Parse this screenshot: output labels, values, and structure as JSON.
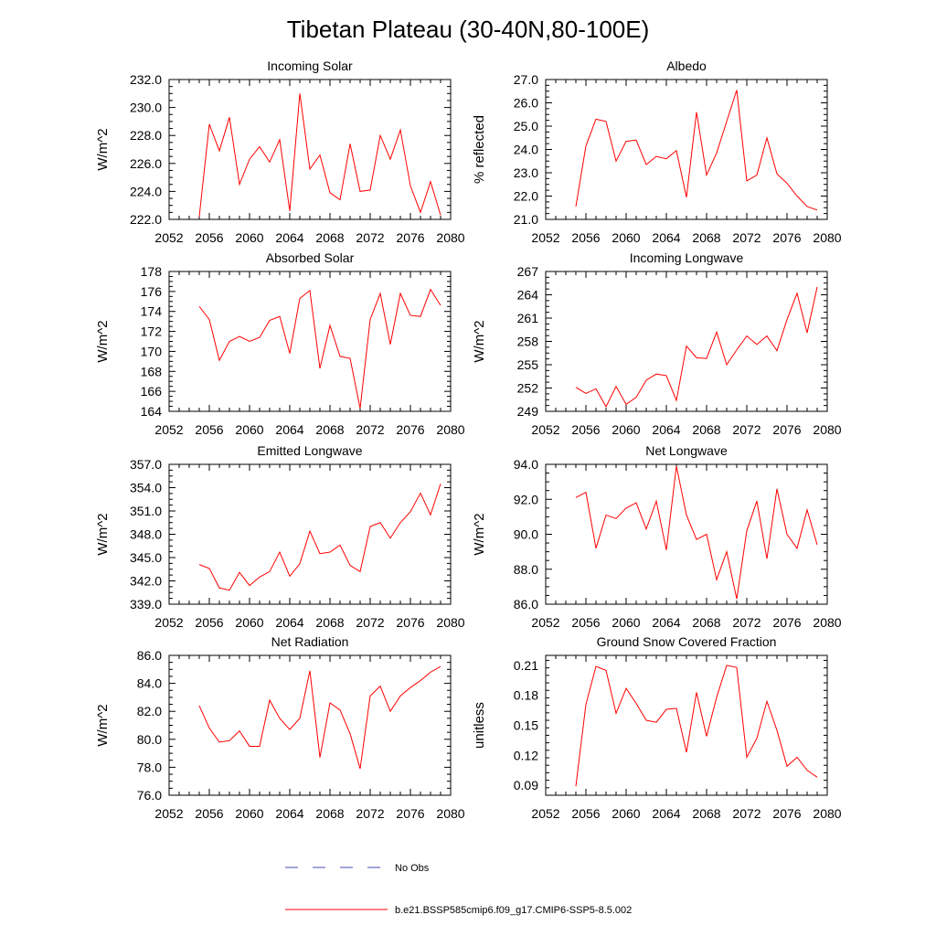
{
  "page": {
    "title": "Tibetan Plateau (30-40N,80-100E)"
  },
  "legend": {
    "obs_label": "No Obs",
    "obs_color": "#4a4ab8",
    "model_label": "b.e21.BSSP585cmip6.f09_g17.CMIP6-SSP5-8.5.002",
    "model_color": "#ff0000"
  },
  "chart_data": [
    {
      "type": "line",
      "title": "Incoming Solar",
      "ylabel": "W/m^2",
      "xlim": [
        2052,
        2080
      ],
      "ylim": [
        222.0,
        232.0
      ],
      "xticks": [
        "2052",
        "2056",
        "2060",
        "2064",
        "2068",
        "2072",
        "2076",
        "2080"
      ],
      "yticks": [
        "222.0",
        "224.0",
        "226.0",
        "228.0",
        "230.0",
        "232.0"
      ],
      "x": [
        2055,
        2056,
        2057,
        2058,
        2059,
        2060,
        2061,
        2062,
        2063,
        2064,
        2065,
        2066,
        2067,
        2068,
        2069,
        2070,
        2071,
        2072,
        2073,
        2074,
        2075,
        2076,
        2077,
        2078,
        2079
      ],
      "series": [
        {
          "values": [
            222.2,
            228.8,
            226.9,
            229.3,
            224.5,
            226.3,
            227.2,
            226.1,
            227.7,
            222.6,
            231.0,
            225.6,
            226.6,
            223.9,
            223.4,
            227.4,
            224.0,
            224.1,
            228.0,
            226.3,
            228.4,
            224.4,
            222.5,
            224.7,
            222.3
          ]
        }
      ]
    },
    {
      "type": "line",
      "title": "Albedo",
      "ylabel": "% reflected",
      "xlim": [
        2052,
        2080
      ],
      "ylim": [
        21.0,
        27.0
      ],
      "xticks": [
        "2052",
        "2056",
        "2060",
        "2064",
        "2068",
        "2072",
        "2076",
        "2080"
      ],
      "yticks": [
        "21.0",
        "22.0",
        "23.0",
        "24.0",
        "25.0",
        "26.0",
        "27.0"
      ],
      "x": [
        2055,
        2056,
        2057,
        2058,
        2059,
        2060,
        2061,
        2062,
        2063,
        2064,
        2065,
        2066,
        2067,
        2068,
        2069,
        2070,
        2071,
        2072,
        2073,
        2074,
        2075,
        2076,
        2077,
        2078,
        2079
      ],
      "series": [
        {
          "values": [
            21.55,
            24.15,
            25.3,
            25.2,
            23.5,
            24.35,
            24.4,
            23.35,
            23.7,
            23.6,
            23.95,
            21.95,
            25.6,
            22.9,
            23.85,
            25.2,
            26.55,
            22.65,
            22.9,
            24.5,
            22.95,
            22.55,
            22.0,
            21.55,
            21.4
          ]
        }
      ]
    },
    {
      "type": "line",
      "title": "Absorbed Solar",
      "ylabel": "W/m^2",
      "xlim": [
        2052,
        2080
      ],
      "ylim": [
        164,
        178
      ],
      "xticks": [
        "2052",
        "2056",
        "2060",
        "2064",
        "2068",
        "2072",
        "2076",
        "2080"
      ],
      "yticks": [
        "164",
        "166",
        "168",
        "170",
        "172",
        "174",
        "176",
        "178"
      ],
      "x": [
        2055,
        2056,
        2057,
        2058,
        2059,
        2060,
        2061,
        2062,
        2063,
        2064,
        2065,
        2066,
        2067,
        2068,
        2069,
        2070,
        2071,
        2072,
        2073,
        2074,
        2075,
        2076,
        2077,
        2078,
        2079
      ],
      "series": [
        {
          "values": [
            174.5,
            173.2,
            169.1,
            171.0,
            171.5,
            171.0,
            171.4,
            173.1,
            173.5,
            169.8,
            175.3,
            176.1,
            168.3,
            172.6,
            169.5,
            169.3,
            164.3,
            173.2,
            175.8,
            170.7,
            175.8,
            173.6,
            173.5,
            176.2,
            174.6
          ]
        }
      ]
    },
    {
      "type": "line",
      "title": "Incoming Longwave",
      "ylabel": "W/m^2",
      "xlim": [
        2052,
        2080
      ],
      "ylim": [
        249,
        267
      ],
      "xticks": [
        "2052",
        "2056",
        "2060",
        "2064",
        "2068",
        "2072",
        "2076",
        "2080"
      ],
      "yticks": [
        "249",
        "252",
        "255",
        "258",
        "261",
        "264",
        "267"
      ],
      "x": [
        2055,
        2056,
        2057,
        2058,
        2059,
        2060,
        2061,
        2062,
        2063,
        2064,
        2065,
        2066,
        2067,
        2068,
        2069,
        2070,
        2071,
        2072,
        2073,
        2074,
        2075,
        2076,
        2077,
        2078,
        2079
      ],
      "series": [
        {
          "values": [
            252.1,
            251.3,
            251.9,
            249.6,
            252.2,
            249.9,
            250.8,
            253.0,
            253.8,
            253.6,
            250.4,
            257.4,
            255.9,
            255.8,
            259.2,
            255.0,
            256.9,
            258.7,
            257.6,
            258.7,
            256.8,
            260.8,
            264.2,
            259.1,
            265.0
          ]
        }
      ]
    },
    {
      "type": "line",
      "title": "Emitted Longwave",
      "ylabel": "W/m^2",
      "xlim": [
        2052,
        2080
      ],
      "ylim": [
        339.0,
        357.0
      ],
      "xticks": [
        "2052",
        "2056",
        "2060",
        "2064",
        "2068",
        "2072",
        "2076",
        "2080"
      ],
      "yticks": [
        "339.0",
        "342.0",
        "345.0",
        "348.0",
        "351.0",
        "354.0",
        "357.0"
      ],
      "x": [
        2055,
        2056,
        2057,
        2058,
        2059,
        2060,
        2061,
        2062,
        2063,
        2064,
        2065,
        2066,
        2067,
        2068,
        2069,
        2070,
        2071,
        2072,
        2073,
        2074,
        2075,
        2076,
        2077,
        2078,
        2079
      ],
      "series": [
        {
          "values": [
            344.1,
            343.6,
            341.1,
            340.8,
            343.1,
            341.4,
            342.5,
            343.2,
            345.7,
            342.6,
            344.2,
            348.4,
            345.5,
            345.7,
            346.6,
            344.0,
            343.2,
            349.0,
            349.5,
            347.5,
            349.5,
            350.9,
            353.3,
            350.5,
            354.5
          ]
        }
      ]
    },
    {
      "type": "line",
      "title": "Net Longwave",
      "ylabel": "W/m^2",
      "xlim": [
        2052,
        2080
      ],
      "ylim": [
        86.0,
        94.0
      ],
      "xticks": [
        "2052",
        "2056",
        "2060",
        "2064",
        "2068",
        "2072",
        "2076",
        "2080"
      ],
      "yticks": [
        "86.0",
        "88.0",
        "90.0",
        "92.0",
        "94.0"
      ],
      "x": [
        2055,
        2056,
        2057,
        2058,
        2059,
        2060,
        2061,
        2062,
        2063,
        2064,
        2065,
        2066,
        2067,
        2068,
        2069,
        2070,
        2071,
        2072,
        2073,
        2074,
        2075,
        2076,
        2077,
        2078,
        2079
      ],
      "series": [
        {
          "values": [
            92.1,
            92.4,
            89.2,
            91.1,
            90.9,
            91.5,
            91.8,
            90.3,
            91.9,
            89.1,
            93.9,
            91.1,
            89.7,
            90.0,
            87.4,
            89.0,
            86.3,
            90.2,
            91.9,
            88.6,
            92.6,
            90.0,
            89.2,
            91.4,
            89.4
          ]
        }
      ]
    },
    {
      "type": "line",
      "title": "Net Radiation",
      "ylabel": "W/m^2",
      "xlim": [
        2052,
        2080
      ],
      "ylim": [
        76.0,
        86.0
      ],
      "xticks": [
        "2052",
        "2056",
        "2060",
        "2064",
        "2068",
        "2072",
        "2076",
        "2080"
      ],
      "yticks": [
        "76.0",
        "78.0",
        "80.0",
        "82.0",
        "84.0",
        "86.0"
      ],
      "x": [
        2055,
        2056,
        2057,
        2058,
        2059,
        2060,
        2061,
        2062,
        2063,
        2064,
        2065,
        2066,
        2067,
        2068,
        2069,
        2070,
        2071,
        2072,
        2073,
        2074,
        2075,
        2076,
        2077,
        2078,
        2079
      ],
      "series": [
        {
          "values": [
            82.4,
            80.8,
            79.8,
            79.9,
            80.6,
            79.5,
            79.5,
            82.8,
            81.5,
            80.7,
            81.5,
            84.9,
            78.7,
            82.6,
            82.1,
            80.4,
            77.9,
            83.1,
            83.8,
            82.0,
            83.1,
            83.7,
            84.2,
            84.8,
            85.2
          ]
        }
      ]
    },
    {
      "type": "line",
      "title": "Ground Snow Covered Fraction",
      "ylabel": "unitless",
      "xlim": [
        2052,
        2080
      ],
      "ylim": [
        0.08,
        0.22
      ],
      "xticks": [
        "2052",
        "2056",
        "2060",
        "2064",
        "2068",
        "2072",
        "2076",
        "2080"
      ],
      "yticks": [
        "0.09",
        "0.12",
        "0.15",
        "0.18",
        "0.21"
      ],
      "x": [
        2055,
        2056,
        2057,
        2058,
        2059,
        2060,
        2061,
        2062,
        2063,
        2064,
        2065,
        2066,
        2067,
        2068,
        2069,
        2070,
        2071,
        2072,
        2073,
        2074,
        2075,
        2076,
        2077,
        2078,
        2079
      ],
      "series": [
        {
          "values": [
            0.089,
            0.171,
            0.209,
            0.205,
            0.162,
            0.187,
            0.172,
            0.155,
            0.153,
            0.166,
            0.167,
            0.123,
            0.183,
            0.139,
            0.178,
            0.21,
            0.208,
            0.118,
            0.137,
            0.174,
            0.145,
            0.109,
            0.118,
            0.105,
            0.098
          ]
        }
      ]
    }
  ]
}
